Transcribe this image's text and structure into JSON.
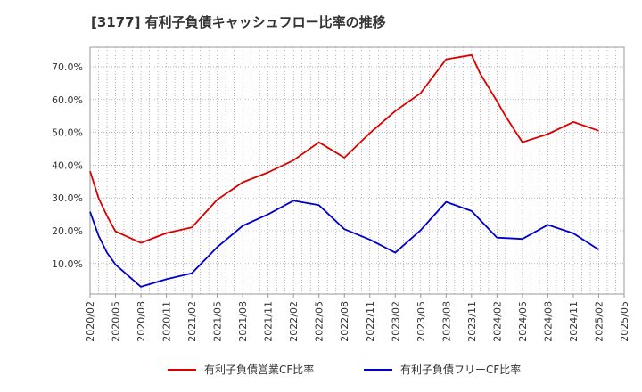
{
  "chart_data": {
    "type": "line",
    "title": "[3177]  有利子負債キャッシュフロー比率の推移",
    "x": [
      "2020/02",
      "2020/03",
      "2020/04",
      "2020/05",
      "2020/08",
      "2020/11",
      "2021/02",
      "2021/05",
      "2021/08",
      "2021/11",
      "2022/02",
      "2022/05",
      "2022/08",
      "2022/11",
      "2023/02",
      "2023/05",
      "2023/08",
      "2023/11",
      "2023/12",
      "2024/02",
      "2024/03",
      "2024/05",
      "2024/08",
      "2024/11",
      "2025/02"
    ],
    "x_ticks": [
      "2020/02",
      "2020/05",
      "2020/08",
      "2020/11",
      "2021/02",
      "2021/05",
      "2021/08",
      "2021/11",
      "2022/02",
      "2022/05",
      "2022/08",
      "2022/11",
      "2023/02",
      "2023/05",
      "2023/08",
      "2023/11",
      "2024/02",
      "2024/05",
      "2024/08",
      "2024/11",
      "2025/02",
      "2025/05"
    ],
    "y_ticks": [
      "10.0%",
      "20.0%",
      "30.0%",
      "40.0%",
      "50.0%",
      "60.0%",
      "70.0%"
    ],
    "ylim": [
      0.7,
      76
    ],
    "xlabel": "",
    "ylabel": "",
    "grid": true,
    "legend_position": "bottom",
    "series": [
      {
        "name": "有利子負債営業CF比率",
        "color": "#dd0000",
        "x": [
          "2020/02",
          "2020/03",
          "2020/04",
          "2020/05",
          "2020/08",
          "2020/11",
          "2021/02",
          "2021/05",
          "2021/08",
          "2021/11",
          "2022/02",
          "2022/05",
          "2022/08",
          "2022/11",
          "2023/02",
          "2023/05",
          "2023/08",
          "2023/11",
          "2023/12",
          "2024/02",
          "2024/03",
          "2024/05",
          "2024/08",
          "2024/11",
          "2025/02"
        ],
        "values": [
          38.2,
          30.0,
          24.5,
          19.8,
          16.3,
          19.3,
          21.0,
          29.5,
          34.8,
          37.8,
          41.5,
          47.0,
          42.3,
          49.8,
          56.5,
          62.0,
          72.3,
          73.6,
          68.0,
          59.5,
          55.0,
          47.0,
          49.5,
          53.2,
          50.5
        ]
      },
      {
        "name": "有利子負債フリーCF比率",
        "color": "#0000cc",
        "x": [
          "2020/02",
          "2020/03",
          "2020/04",
          "2020/05",
          "2020/08",
          "2020/11",
          "2021/02",
          "2021/05",
          "2021/08",
          "2021/11",
          "2022/02",
          "2022/05",
          "2022/08",
          "2022/11",
          "2023/02",
          "2023/05",
          "2023/08",
          "2023/11",
          "2024/02",
          "2024/05",
          "2024/08",
          "2024/11",
          "2025/02"
        ],
        "values": [
          25.8,
          18.5,
          13.3,
          9.7,
          2.9,
          5.2,
          7.0,
          15.0,
          21.5,
          25.0,
          29.2,
          27.8,
          20.5,
          17.3,
          13.3,
          20.2,
          28.8,
          26.0,
          17.9,
          17.5,
          21.8,
          19.2,
          14.2
        ]
      }
    ]
  }
}
